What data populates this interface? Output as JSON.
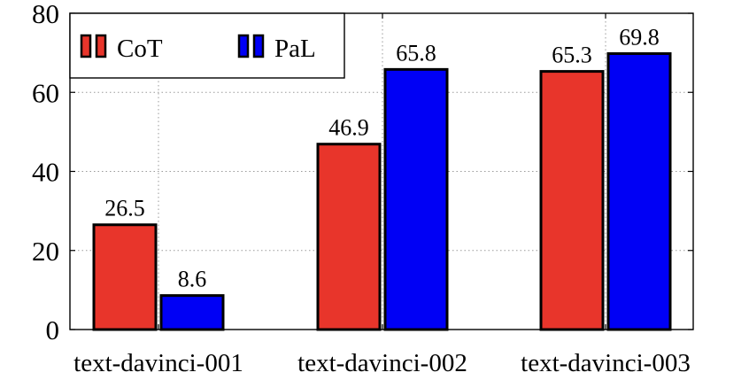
{
  "chart_data": {
    "type": "bar",
    "title": "",
    "xlabel": "",
    "ylabel": "",
    "categories": [
      "text-davinci-001",
      "text-davinci-002",
      "text-davinci-003"
    ],
    "series": [
      {
        "name": "CoT",
        "color": "#e8352b",
        "values": [
          26.5,
          46.9,
          65.3
        ]
      },
      {
        "name": "PaL",
        "color": "#0000f5",
        "values": [
          8.6,
          65.8,
          69.8
        ]
      }
    ],
    "ylim": [
      0,
      80
    ],
    "yticks": [
      0,
      20,
      40,
      60,
      80
    ],
    "grid": true,
    "legend_position": "top-left"
  }
}
